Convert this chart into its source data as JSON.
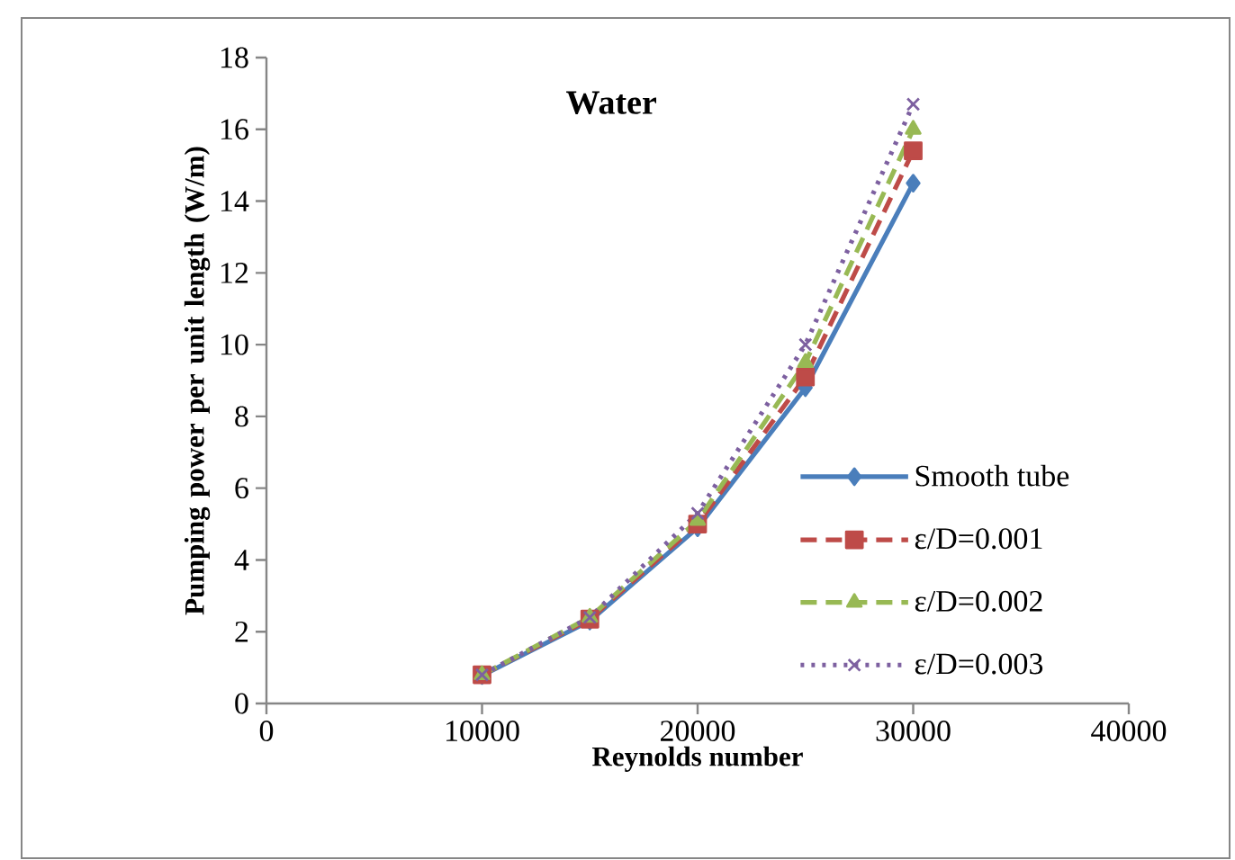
{
  "chart_data": {
    "type": "line",
    "title": "Water",
    "xlabel": "Reynolds number",
    "ylabel": "Pumping power per unit length (W/m)",
    "x": [
      10000,
      15000,
      20000,
      25000,
      30000
    ],
    "series": [
      {
        "name": "Smooth tube",
        "color": "#4a7ebb",
        "marker": "diamond",
        "line_style": "solid",
        "values": [
          0.78,
          2.3,
          4.9,
          8.8,
          14.5
        ]
      },
      {
        "name": "ε/D=0.001",
        "color": "#be4b48",
        "marker": "square",
        "line_style": "dashed",
        "values": [
          0.8,
          2.35,
          5.0,
          9.1,
          15.4
        ]
      },
      {
        "name": "ε/D=0.002",
        "color": "#98b954",
        "marker": "triangle",
        "line_style": "dashed",
        "values": [
          0.8,
          2.4,
          5.1,
          9.5,
          16.0
        ]
      },
      {
        "name": "ε/D=0.003",
        "color": "#7d60a0",
        "marker": "cross",
        "line_style": "dotted",
        "values": [
          0.8,
          2.4,
          5.3,
          10.0,
          16.7
        ]
      }
    ],
    "xlim": [
      0,
      40000
    ],
    "xticks": [
      0,
      10000,
      20000,
      30000,
      40000
    ],
    "ylim": [
      0,
      18
    ],
    "yticks": [
      0,
      2,
      4,
      6,
      8,
      10,
      12,
      14,
      16,
      18
    ],
    "grid": false,
    "legend": "right"
  }
}
